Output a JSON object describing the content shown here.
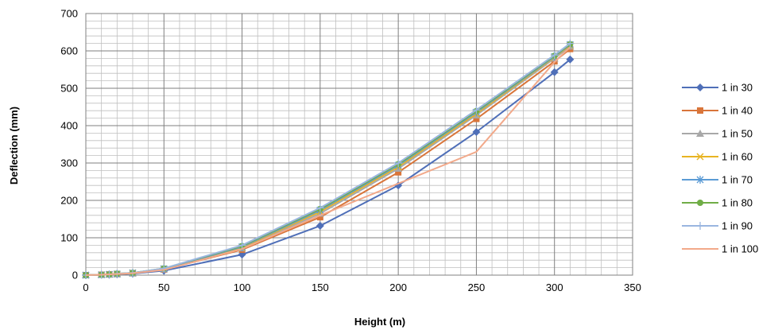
{
  "chart_data": {
    "type": "line",
    "title": "",
    "xlabel": "Height (m)",
    "ylabel": "Deflection (mm)",
    "xlim": [
      0,
      350
    ],
    "ylim": [
      0,
      700
    ],
    "xticks": [
      0,
      50,
      100,
      150,
      200,
      250,
      300,
      350
    ],
    "yticks": [
      0,
      100,
      200,
      300,
      400,
      500,
      600,
      700
    ],
    "x_tick_labels": [
      "0",
      "50",
      "100",
      "150",
      "200",
      "250",
      "300",
      "350"
    ],
    "y_tick_labels": [
      "0",
      "100",
      "200",
      "300",
      "400",
      "500",
      "600",
      "700"
    ],
    "grid": true,
    "legend_position": "right",
    "x": [
      0,
      10,
      15,
      20,
      30,
      50,
      100,
      150,
      200,
      250,
      300,
      310
    ],
    "series": [
      {
        "name": "1 in 30",
        "color": "#4f6fb8",
        "marker": "diamond",
        "values": [
          0,
          1,
          1,
          2,
          4,
          12,
          55,
          132,
          240,
          383,
          543,
          577
        ]
      },
      {
        "name": "1 in 40",
        "color": "#d9753a",
        "marker": "square",
        "values": [
          0,
          1,
          2,
          3,
          5,
          15,
          68,
          155,
          275,
          418,
          572,
          605
        ]
      },
      {
        "name": "1 in 50",
        "color": "#a8a8a8",
        "marker": "triangle",
        "values": [
          0,
          1,
          2,
          3,
          5,
          16,
          72,
          165,
          285,
          428,
          580,
          612
        ]
      },
      {
        "name": "1 in 60",
        "color": "#e8b422",
        "marker": "x",
        "values": [
          0,
          1,
          2,
          3,
          6,
          17,
          74,
          170,
          290,
          432,
          583,
          615
        ]
      },
      {
        "name": "1 in 70",
        "color": "#5b9bd5",
        "marker": "star",
        "values": [
          0,
          1,
          2,
          3,
          6,
          17,
          76,
          174,
          294,
          436,
          585,
          617
        ]
      },
      {
        "name": "1 in 80",
        "color": "#70ad47",
        "marker": "circle",
        "values": [
          0,
          1,
          2,
          4,
          6,
          18,
          78,
          177,
          297,
          439,
          587,
          618
        ]
      },
      {
        "name": "1 in 90",
        "color": "#9ab6e0",
        "marker": "plus",
        "values": [
          0,
          1,
          2,
          4,
          6,
          18,
          80,
          180,
          300,
          442,
          589,
          620
        ]
      },
      {
        "name": "1 in 100",
        "color": "#f2a98a",
        "marker": "none",
        "values": [
          0,
          1,
          2,
          3,
          5,
          14,
          70,
          160,
          245,
          330,
          570,
          610
        ]
      }
    ]
  }
}
